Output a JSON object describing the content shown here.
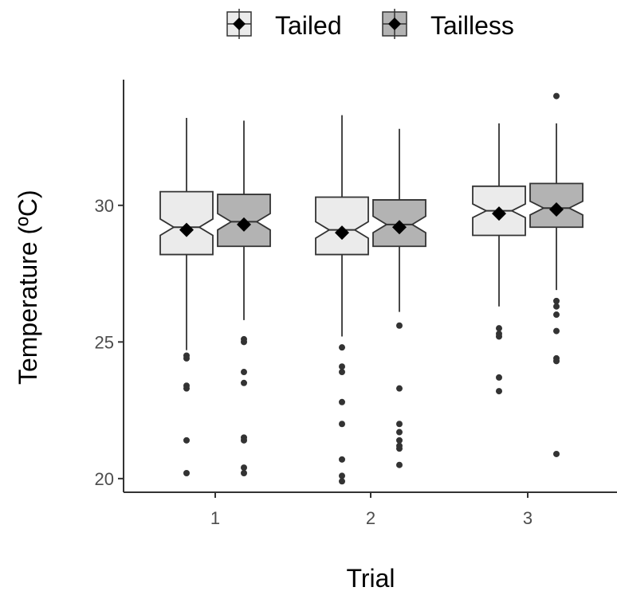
{
  "chart_data": {
    "type": "boxplot",
    "title": "",
    "xlabel": "Trial",
    "ylabel": "Temperature (ºC)",
    "categories": [
      "1",
      "2",
      "3"
    ],
    "yticks": [
      20,
      25,
      30
    ],
    "ylim": [
      19.5,
      34.6
    ],
    "grid": false,
    "legend_position": "top",
    "series": [
      {
        "name": "Tailed",
        "color": "#ebebeb",
        "boxes": [
          {
            "category": "1",
            "q1": 28.2,
            "median": 29.2,
            "q3": 30.5,
            "notch_low": 28.9,
            "notch_high": 29.5,
            "whisker_low": 24.7,
            "whisker_high": 33.2,
            "mean": 29.1,
            "outliers": [
              24.5,
              24.4,
              23.4,
              23.3,
              21.4,
              20.2
            ]
          },
          {
            "category": "2",
            "q1": 28.2,
            "median": 29.1,
            "q3": 30.3,
            "notch_low": 28.8,
            "notch_high": 29.4,
            "whisker_low": 25.2,
            "whisker_high": 33.3,
            "mean": 29.0,
            "outliers": [
              24.8,
              24.1,
              23.9,
              22.8,
              22.0,
              20.7,
              20.1,
              19.9
            ]
          },
          {
            "category": "3",
            "q1": 28.9,
            "median": 29.8,
            "q3": 30.7,
            "notch_low": 29.55,
            "notch_high": 30.05,
            "whisker_low": 26.3,
            "whisker_high": 33.0,
            "mean": 29.7,
            "outliers": [
              25.5,
              25.3,
              25.2,
              23.7,
              23.2
            ]
          }
        ]
      },
      {
        "name": "Tailless",
        "color": "#b3b3b3",
        "boxes": [
          {
            "category": "1",
            "q1": 28.5,
            "median": 29.4,
            "q3": 30.4,
            "notch_low": 29.1,
            "notch_high": 29.7,
            "whisker_low": 25.8,
            "whisker_high": 33.1,
            "mean": 29.3,
            "outliers": [
              25.1,
              25.0,
              23.9,
              23.5,
              21.5,
              21.4,
              20.4,
              20.2
            ]
          },
          {
            "category": "2",
            "q1": 28.5,
            "median": 29.3,
            "q3": 30.2,
            "notch_low": 29.0,
            "notch_high": 29.6,
            "whisker_low": 26.1,
            "whisker_high": 32.8,
            "mean": 29.2,
            "outliers": [
              25.6,
              23.3,
              22.0,
              21.7,
              21.4,
              21.2,
              21.1,
              20.5
            ]
          },
          {
            "category": "3",
            "q1": 29.2,
            "median": 29.9,
            "q3": 30.8,
            "notch_low": 29.65,
            "notch_high": 30.15,
            "whisker_low": 26.9,
            "whisker_high": 33.0,
            "mean": 29.85,
            "outliers": [
              34.0,
              26.5,
              26.3,
              26.0,
              25.4,
              24.4,
              24.3,
              20.9
            ]
          }
        ]
      }
    ]
  }
}
